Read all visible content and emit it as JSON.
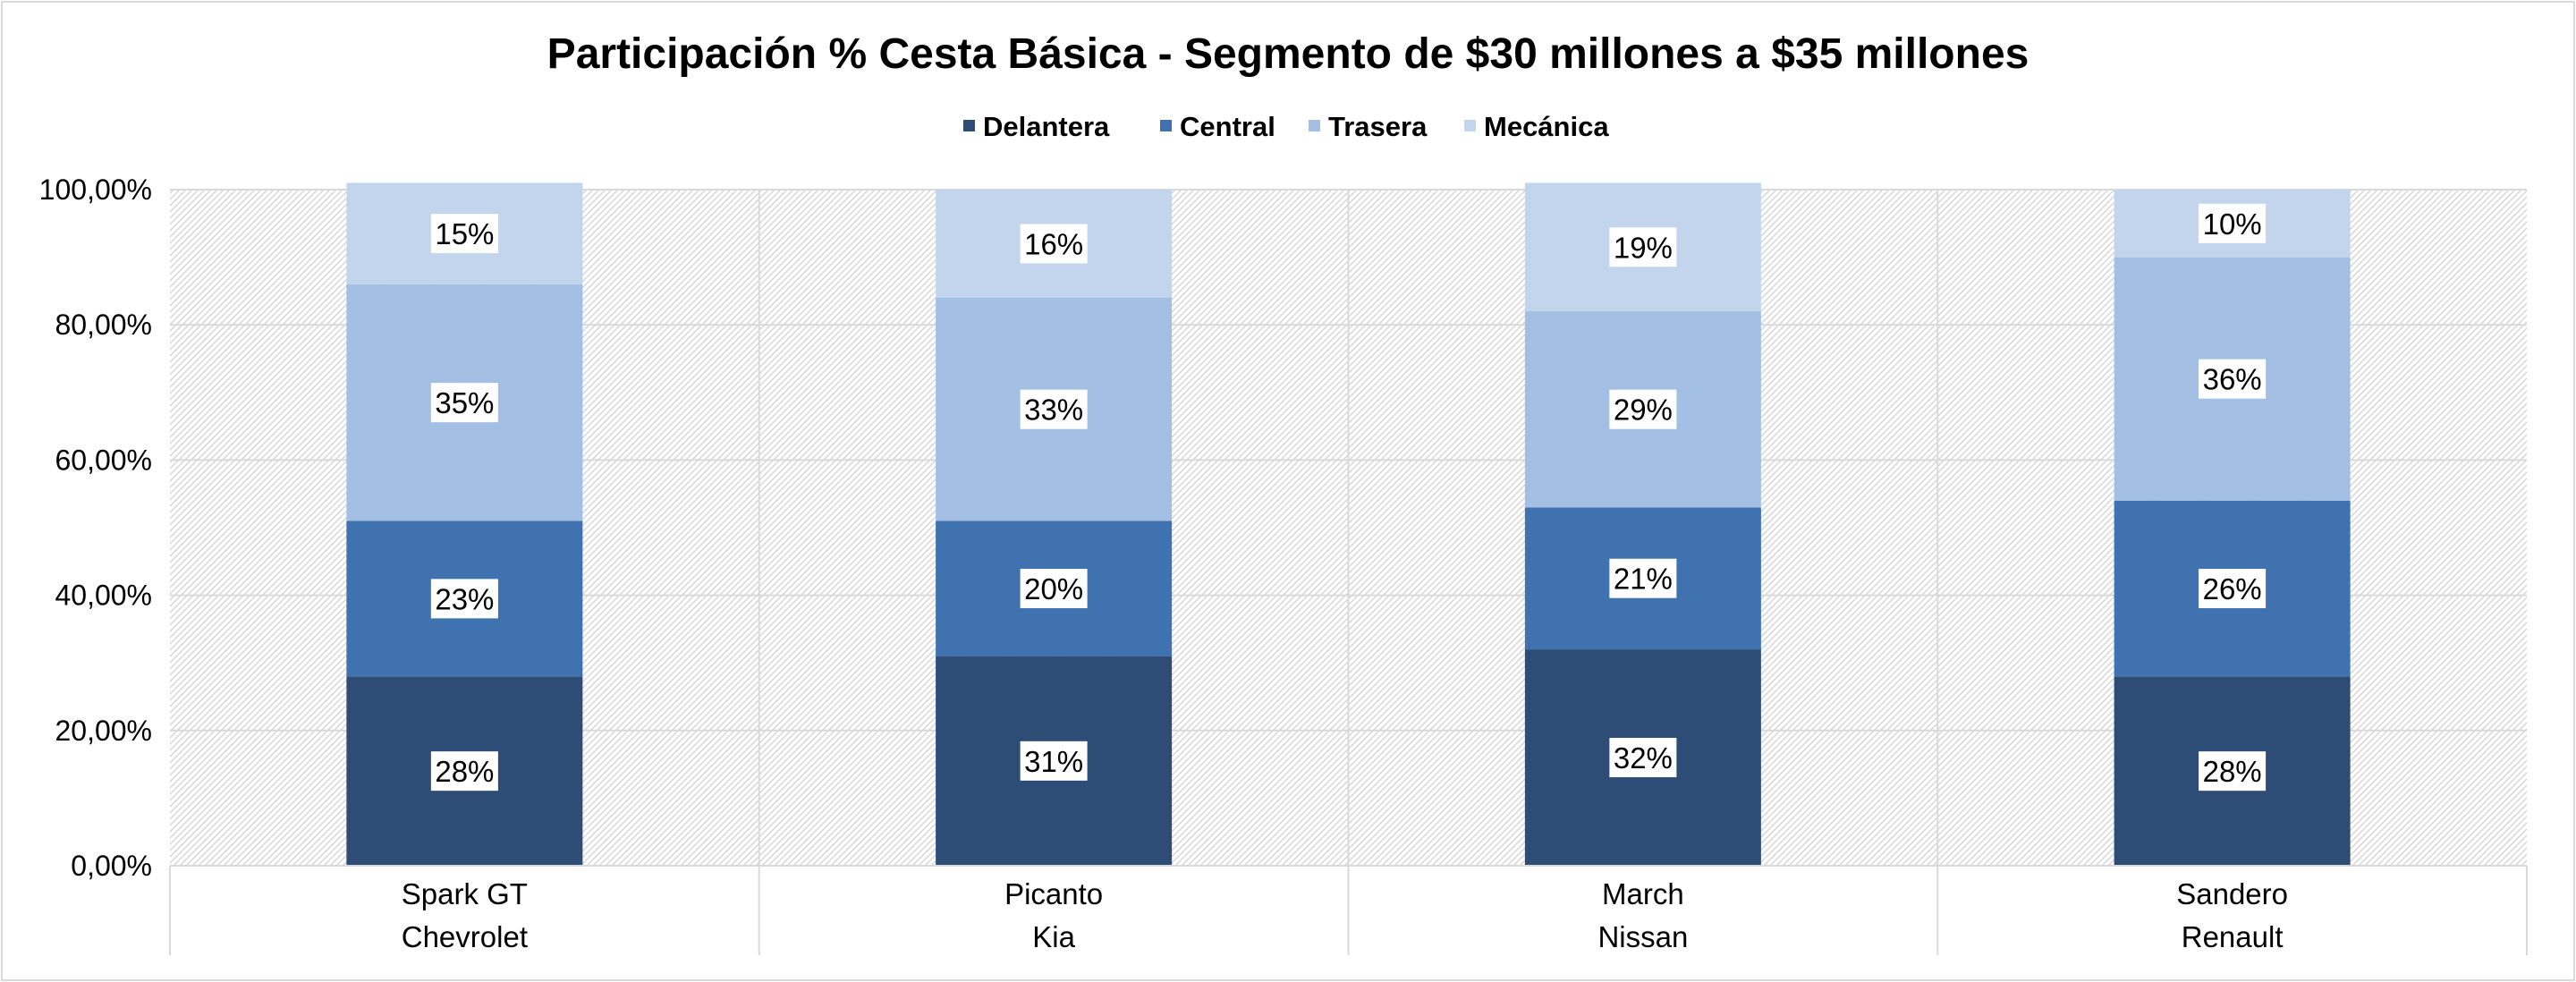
{
  "chart_data": {
    "type": "bar",
    "stacked": true,
    "title": "Participación % Cesta Básica - Segmento de $30 millones a $35 millones",
    "categories": [
      [
        "Spark GT",
        "Chevrolet"
      ],
      [
        "Picanto",
        "Kia"
      ],
      [
        "March",
        "Nissan"
      ],
      [
        "Sandero",
        "Renault"
      ]
    ],
    "series": [
      {
        "name": "Delantera",
        "color": "#2e4d76",
        "values": [
          0.28,
          0.31,
          0.32,
          0.28
        ],
        "labels": [
          "28%",
          "31%",
          "32%",
          "28%"
        ]
      },
      {
        "name": "Central",
        "color": "#3f72af",
        "values": [
          0.23,
          0.2,
          0.21,
          0.26
        ],
        "labels": [
          "23%",
          "20%",
          "21%",
          "26%"
        ]
      },
      {
        "name": "Trasera",
        "color": "#a3c0e4",
        "values": [
          0.35,
          0.33,
          0.29,
          0.36
        ],
        "labels": [
          "35%",
          "33%",
          "29%",
          "36%"
        ]
      },
      {
        "name": "Mecánica",
        "color": "#c2d5ed",
        "values": [
          0.15,
          0.16,
          0.19,
          0.1
        ],
        "labels": [
          "15%",
          "16%",
          "19%",
          "10%"
        ]
      }
    ],
    "ylim": [
      0,
      1
    ],
    "yticks": [
      "0,00%",
      "20,00%",
      "40,00%",
      "60,00%",
      "80,00%",
      "100,00%"
    ],
    "grid": true,
    "legend_position": "top"
  }
}
